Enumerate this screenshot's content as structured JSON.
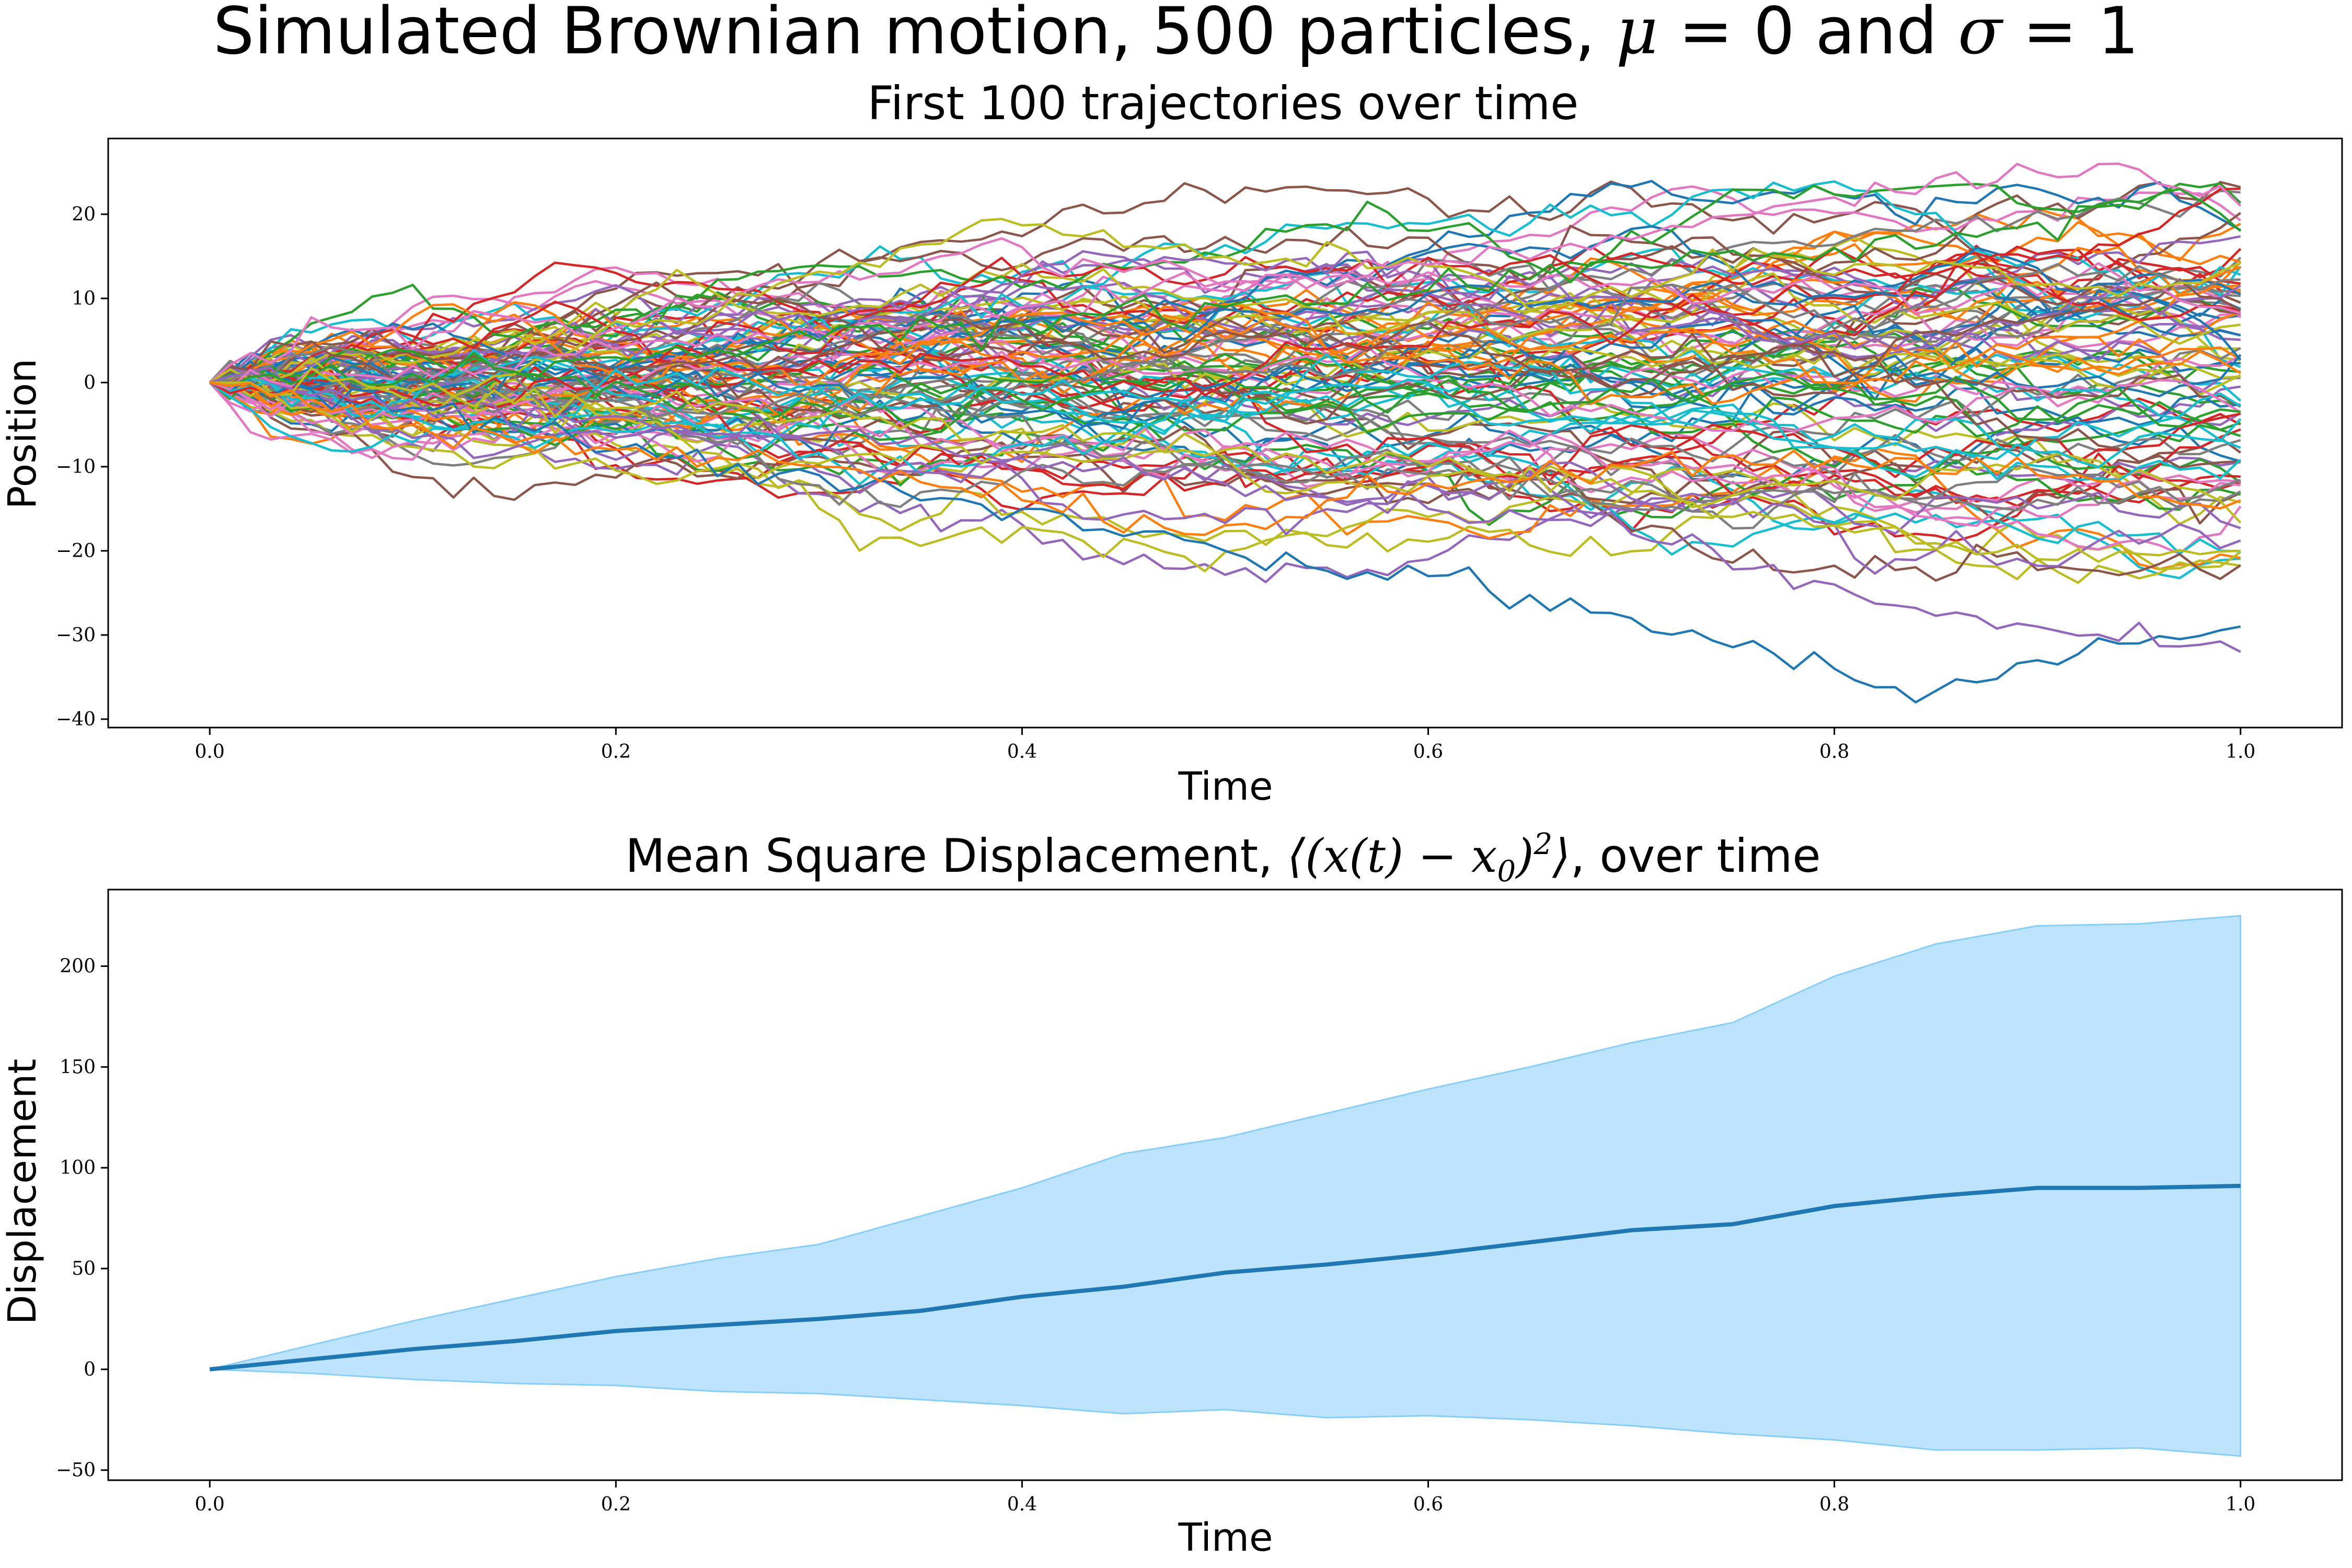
{
  "figure": {
    "suptitle": "Simulated Brownian motion, 500 particles, μ = 0 and σ = 1",
    "suptitle_parts": {
      "text1": "Simulated Brownian motion, 500 particles, ",
      "mu": "μ",
      "eq1": " = 0",
      "and": " and ",
      "sigma": "σ",
      "eq2": " = 1"
    }
  },
  "chart_data": [
    {
      "type": "line",
      "title": "First 100 trajectories over time",
      "xlabel": "Time",
      "ylabel": "Position",
      "xlim": [
        -0.05,
        1.05
      ],
      "ylim": [
        -41,
        29
      ],
      "xticks": [
        0.0,
        0.2,
        0.4,
        0.6,
        0.8,
        1.0
      ],
      "xtick_labels": [
        "0.0",
        "0.2",
        "0.4",
        "0.6",
        "0.8",
        "1.0"
      ],
      "yticks": [
        20,
        10,
        0,
        -10,
        -20,
        -30,
        -40
      ],
      "ytick_labels": [
        "20",
        "10",
        "0",
        "−10",
        "−20",
        "−30",
        "−40"
      ],
      "grid": false,
      "n_series": 100,
      "n_steps": 100,
      "colors": [
        "#1f77b4",
        "#ff7f0e",
        "#2ca02c",
        "#d62728",
        "#9467bd",
        "#8c564b",
        "#e377c2",
        "#7f7f7f",
        "#bcbd22",
        "#17becf"
      ],
      "highlight_series": [
        {
          "color": "#1f77b4",
          "x": [
            0.0,
            0.1,
            0.2,
            0.3,
            0.4,
            0.5,
            0.6,
            0.7,
            0.8,
            0.84,
            0.9,
            0.95,
            1.0
          ],
          "y": [
            0,
            -3,
            -8,
            -11,
            -15,
            -20,
            -23,
            -28,
            -34,
            -38,
            -33,
            -31,
            -29
          ]
        },
        {
          "color": "#9467bd",
          "x": [
            0.0,
            0.1,
            0.2,
            0.3,
            0.4,
            0.5,
            0.6,
            0.7,
            0.8,
            0.9,
            1.0
          ],
          "y": [
            0,
            -2,
            -4,
            -6,
            -9,
            -12,
            -15,
            -18,
            -24,
            -29,
            -32
          ]
        },
        {
          "color": "#e377c2",
          "x": [
            0.0,
            0.1,
            0.2,
            0.3,
            0.4,
            0.5,
            0.6,
            0.7,
            0.8,
            0.9,
            0.94,
            1.0
          ],
          "y": [
            0,
            2,
            4,
            6,
            9,
            12,
            14,
            17,
            22,
            25,
            26,
            21
          ]
        },
        {
          "color": "#2ca02c",
          "x": [
            0.0,
            0.1,
            0.2,
            0.3,
            0.4,
            0.5,
            0.6,
            0.7,
            0.8,
            0.9,
            0.97,
            1.0
          ],
          "y": [
            0,
            1,
            3,
            5,
            7,
            9,
            11,
            14,
            16,
            19,
            23,
            18
          ]
        },
        {
          "color": "#bcbd22",
          "x": [
            0.0,
            0.1,
            0.2,
            0.3,
            0.4,
            0.5,
            0.6,
            0.7,
            0.8,
            0.9,
            1.0
          ],
          "y": [
            0,
            -1,
            -3,
            -4,
            -6,
            -8,
            -10,
            -13,
            -17,
            -21,
            -20
          ]
        },
        {
          "color": "#ff7f0e",
          "x": [
            0.0,
            0.1,
            0.2,
            0.3,
            0.4,
            0.48,
            0.55,
            0.6,
            0.7,
            0.8,
            0.9,
            1.0
          ],
          "y": [
            0,
            -5,
            -8,
            -10,
            -14,
            -18,
            -14,
            -12,
            -10,
            -9,
            -11,
            -14
          ]
        }
      ]
    },
    {
      "type": "line",
      "title": "Mean Square Displacement, ⟨(x(t) − x0)²⟩, over time",
      "title_parts": {
        "text1": "Mean Square Displacement, ",
        "math": "⟨(x(t) − x",
        "sub": "0",
        "close": ")",
        "sup": "2",
        "angle": "⟩",
        "text2": ", over time"
      },
      "xlabel": "Time",
      "ylabel": "Displacement",
      "xlim": [
        -0.05,
        1.05
      ],
      "ylim": [
        -55,
        238
      ],
      "xticks": [
        0.0,
        0.2,
        0.4,
        0.6,
        0.8,
        1.0
      ],
      "xtick_labels": [
        "0.0",
        "0.2",
        "0.4",
        "0.6",
        "0.8",
        "1.0"
      ],
      "yticks": [
        200,
        150,
        100,
        50,
        0,
        -50
      ],
      "ytick_labels": [
        "200",
        "150",
        "100",
        "50",
        "0",
        "−50"
      ],
      "grid": false,
      "line_color": "#1f77b4",
      "band_color": "#87cefa",
      "x": [
        0.0,
        0.05,
        0.1,
        0.15,
        0.2,
        0.25,
        0.3,
        0.35,
        0.4,
        0.45,
        0.5,
        0.55,
        0.6,
        0.65,
        0.7,
        0.75,
        0.8,
        0.85,
        0.9,
        0.95,
        1.0
      ],
      "mean": [
        0,
        5,
        10,
        14,
        19,
        22,
        25,
        29,
        36,
        41,
        48,
        52,
        57,
        63,
        69,
        72,
        81,
        86,
        90,
        90,
        91
      ],
      "upper": [
        0,
        12,
        24,
        35,
        46,
        55,
        62,
        76,
        90,
        107,
        115,
        127,
        139,
        150,
        162,
        172,
        195,
        211,
        220,
        221,
        225
      ],
      "lower": [
        0,
        -2,
        -5,
        -7,
        -8,
        -11,
        -12,
        -15,
        -18,
        -22,
        -20,
        -24,
        -23,
        -25,
        -28,
        -32,
        -35,
        -40,
        -40,
        -39,
        -43
      ]
    }
  ]
}
